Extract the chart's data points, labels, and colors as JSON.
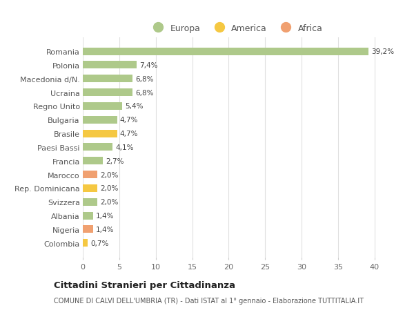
{
  "countries": [
    "Romania",
    "Polonia",
    "Macedonia d/N.",
    "Ucraina",
    "Regno Unito",
    "Bulgaria",
    "Brasile",
    "Paesi Bassi",
    "Francia",
    "Marocco",
    "Rep. Dominicana",
    "Svizzera",
    "Albania",
    "Nigeria",
    "Colombia"
  ],
  "values": [
    39.2,
    7.4,
    6.8,
    6.8,
    5.4,
    4.7,
    4.7,
    4.1,
    2.7,
    2.0,
    2.0,
    2.0,
    1.4,
    1.4,
    0.7
  ],
  "labels": [
    "39,2%",
    "7,4%",
    "6,8%",
    "6,8%",
    "5,4%",
    "4,7%",
    "4,7%",
    "4,1%",
    "2,7%",
    "2,0%",
    "2,0%",
    "2,0%",
    "1,4%",
    "1,4%",
    "0,7%"
  ],
  "continents": [
    "Europa",
    "Europa",
    "Europa",
    "Europa",
    "Europa",
    "Europa",
    "America",
    "Europa",
    "Europa",
    "Africa",
    "America",
    "Europa",
    "Europa",
    "Africa",
    "America"
  ],
  "colors": {
    "Europa": "#aec98a",
    "America": "#f5c842",
    "Africa": "#f0a070"
  },
  "xlim": [
    0,
    42
  ],
  "xticks": [
    0,
    5,
    10,
    15,
    20,
    25,
    30,
    35,
    40
  ],
  "title": "Cittadini Stranieri per Cittadinanza",
  "subtitle": "COMUNE DI CALVI DELL'UMBRIA (TR) - Dati ISTAT al 1° gennaio - Elaborazione TUTTITALIA.IT",
  "background_color": "#ffffff",
  "grid_color": "#e0e0e0",
  "bar_height": 0.55
}
